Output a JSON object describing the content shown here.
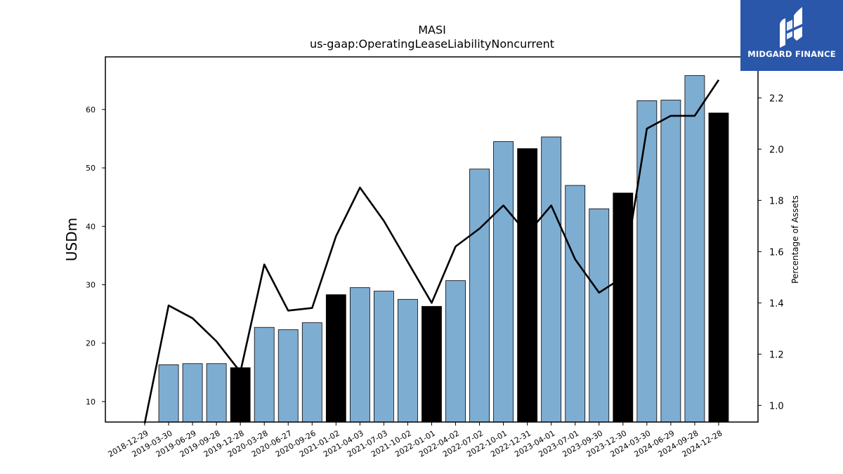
{
  "chart_data": {
    "type": "bar",
    "title": "MASI",
    "subtitle": "us-gaap:OperatingLeaseLiabilityNoncurrent",
    "ylabel": "USDm",
    "y2label": "Percentage of Assets",
    "ylim": [
      6.5,
      69
    ],
    "y2lim": [
      0.935,
      2.36
    ],
    "yticks": [
      10,
      20,
      30,
      40,
      50,
      60
    ],
    "y2ticks": [
      1.0,
      1.2,
      1.4,
      1.6,
      1.8,
      2.0,
      2.2
    ],
    "categories": [
      "2018-12-29",
      "2019-03-30",
      "2019-06-29",
      "2019-09-28",
      "2019-12-28",
      "2020-03-28",
      "2020-06-27",
      "2020-09-26",
      "2021-01-02",
      "2021-04-03",
      "2021-07-03",
      "2021-10-02",
      "2022-01-01",
      "2022-04-02",
      "2022-07-02",
      "2022-10-01",
      "2022-12-31",
      "2023-04-01",
      "2023-07-01",
      "2023-09-30",
      "2023-12-30",
      "2024-03-30",
      "2024-06-29",
      "2024-09-28",
      "2024-12-28"
    ],
    "series": [
      {
        "kind": "bar",
        "values": [
          null,
          16.3,
          16.5,
          16.5,
          15.8,
          22.7,
          22.3,
          23.5,
          28.3,
          29.5,
          28.9,
          27.5,
          26.3,
          30.7,
          49.8,
          54.5,
          53.3,
          55.3,
          47.0,
          43.0,
          45.7,
          61.5,
          61.6,
          65.8,
          59.4
        ],
        "colors": [
          "#7eadd2",
          "#7eadd2",
          "#7eadd2",
          "#7eadd2",
          "#000000",
          "#7eadd2",
          "#7eadd2",
          "#7eadd2",
          "#000000",
          "#7eadd2",
          "#7eadd2",
          "#7eadd2",
          "#000000",
          "#7eadd2",
          "#7eadd2",
          "#7eadd2",
          "#000000",
          "#7eadd2",
          "#7eadd2",
          "#7eadd2",
          "#000000",
          "#7eadd2",
          "#7eadd2",
          "#7eadd2",
          "#000000"
        ]
      },
      {
        "kind": "line",
        "axis": "right",
        "color": "#000000",
        "values": [
          0.93,
          1.39,
          1.34,
          1.25,
          1.13,
          1.55,
          1.37,
          1.38,
          1.66,
          1.85,
          1.72,
          1.56,
          1.4,
          1.62,
          1.69,
          1.78,
          1.67,
          1.78,
          1.57,
          1.44,
          1.5,
          2.08,
          2.13,
          2.13,
          2.27
        ]
      }
    ],
    "grid": false,
    "legend": "none"
  },
  "logo": {
    "text": "MIDGARD FINANCE",
    "icon": "midgard-logo-icon"
  }
}
